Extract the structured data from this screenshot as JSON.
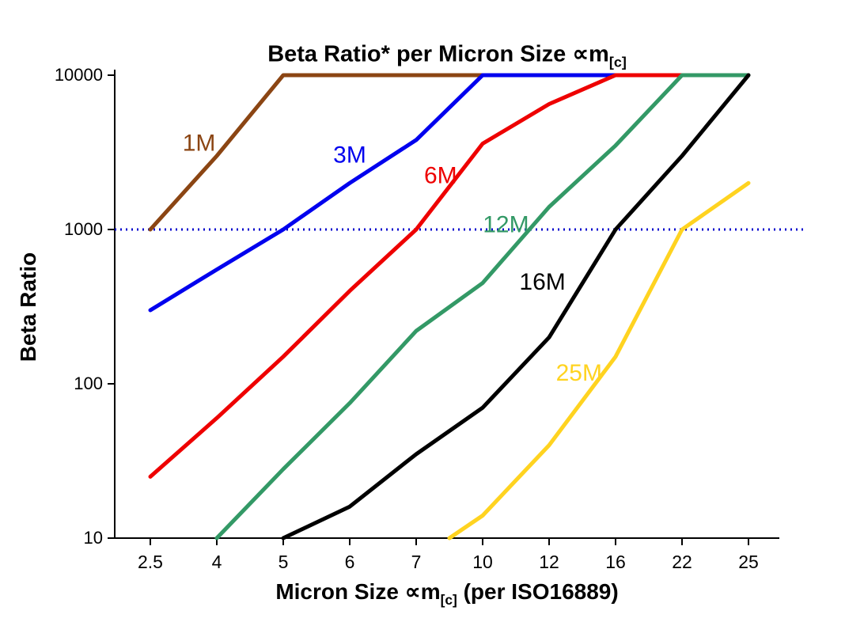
{
  "chart_data": {
    "type": "line",
    "title_main": "Beta Ratio* per Micron Size ∝m",
    "title_sub": "[c]",
    "ylabel": "Beta Ratio",
    "xlabel_main": "Micron Size ∝m",
    "xlabel_sub": "[c]",
    "xlabel_rest": " (per ISO16889)",
    "x_scale": "categorical",
    "y_scale": "log",
    "ylim": [
      10,
      10000
    ],
    "y_ticks": [
      "10",
      "100",
      "1000",
      "10000"
    ],
    "categories": [
      2.5,
      4,
      5,
      6,
      7,
      10,
      12,
      16,
      22,
      25
    ],
    "category_labels": [
      "2.5",
      "4",
      "5",
      "6",
      "7",
      "10",
      "12",
      "16",
      "22",
      "25"
    ],
    "grid": "off",
    "legend": "inline-labels",
    "reference_line": {
      "y": 1000,
      "color": "#0000CC",
      "style": "dotted"
    },
    "series": [
      {
        "name": "1M",
        "color": "#8B4513",
        "points": [
          [
            2.5,
            1000
          ],
          [
            4,
            3000
          ],
          [
            5,
            10000
          ],
          [
            6,
            10000
          ],
          [
            7,
            10000
          ],
          [
            10,
            10000
          ]
        ]
      },
      {
        "name": "3M",
        "color": "#0000EE",
        "points": [
          [
            2.5,
            300
          ],
          [
            4,
            550
          ],
          [
            5,
            1000
          ],
          [
            6,
            2000
          ],
          [
            7,
            3800
          ],
          [
            10,
            10000
          ],
          [
            12,
            10000
          ],
          [
            16,
            10000
          ]
        ]
      },
      {
        "name": "6M",
        "color": "#EE0000",
        "points": [
          [
            2.5,
            25
          ],
          [
            4,
            60
          ],
          [
            5,
            150
          ],
          [
            6,
            400
          ],
          [
            7,
            1000
          ],
          [
            10,
            3600
          ],
          [
            12,
            6500
          ],
          [
            16,
            10000
          ],
          [
            22,
            10000
          ]
        ]
      },
      {
        "name": "12M",
        "color": "#339966",
        "points": [
          [
            4,
            10
          ],
          [
            5,
            28
          ],
          [
            6,
            75
          ],
          [
            7,
            220
          ],
          [
            10,
            450
          ],
          [
            12,
            1400
          ],
          [
            16,
            3500
          ],
          [
            22,
            10000
          ],
          [
            25,
            10000
          ]
        ]
      },
      {
        "name": "16M",
        "color": "#000000",
        "points": [
          [
            5,
            10
          ],
          [
            6,
            16
          ],
          [
            7,
            35
          ],
          [
            10,
            70
          ],
          [
            12,
            200
          ],
          [
            16,
            1000
          ],
          [
            22,
            3000
          ],
          [
            25,
            10000
          ]
        ]
      },
      {
        "name": "25M",
        "color": "#FFD320",
        "points": [
          [
            8.5,
            10
          ],
          [
            10,
            14
          ],
          [
            12,
            40
          ],
          [
            16,
            150
          ],
          [
            22,
            1000
          ],
          [
            25,
            2000
          ]
        ]
      }
    ],
    "annotations": [
      {
        "label": "1M",
        "x": 3.6,
        "y": 3650,
        "color": "#8B4513"
      },
      {
        "label": "3M",
        "x": 6.0,
        "y": 3050,
        "color": "#0000EE"
      },
      {
        "label": "6M",
        "x": 8.1,
        "y": 2250,
        "color": "#EE0000"
      },
      {
        "label": "12M",
        "x": 10.7,
        "y": 1080,
        "color": "#339966"
      },
      {
        "label": "16M",
        "x": 11.8,
        "y": 460,
        "color": "#000000"
      },
      {
        "label": "25M",
        "x": 13.8,
        "y": 118,
        "color": "#FFD320"
      }
    ]
  }
}
